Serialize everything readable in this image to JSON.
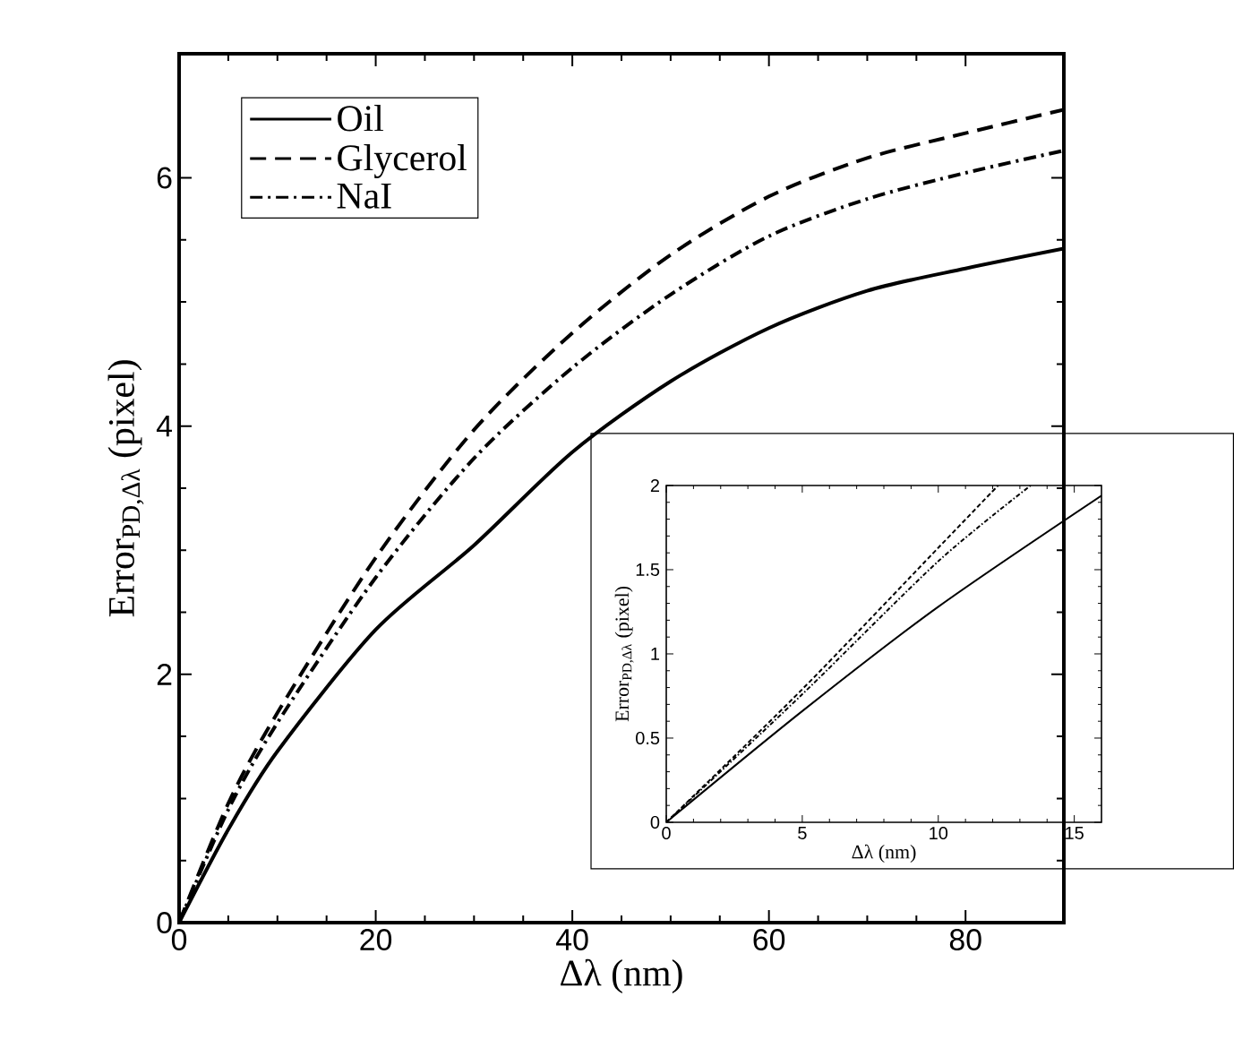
{
  "chart_data": [
    {
      "type": "line",
      "xlabel": "Δλ (nm)",
      "ylabel": "Error$_{PD,Δλ}$ (pixel)",
      "xlim": [
        0,
        90
      ],
      "ylim": [
        0,
        7
      ],
      "xticks": [
        0,
        20,
        40,
        60,
        80
      ],
      "yticks": [
        0,
        2,
        4,
        6
      ],
      "legend": "top left",
      "grid": false,
      "series": [
        {
          "name": "Oil",
          "color": "#000000",
          "line_style": "solid",
          "x": [
            0,
            5,
            10,
            20,
            30,
            40,
            50,
            60,
            70,
            80,
            90
          ],
          "values": [
            0,
            0.75,
            1.38,
            2.36,
            3.04,
            3.79,
            4.36,
            4.79,
            5.09,
            5.27,
            5.43
          ]
        },
        {
          "name": "Glycerol",
          "color": "#000000",
          "line_style": "dashed",
          "x": [
            0,
            5,
            10,
            20,
            30,
            40,
            50,
            60,
            70,
            80,
            90
          ],
          "values": [
            0,
            0.96,
            1.69,
            2.94,
            3.97,
            4.75,
            5.38,
            5.85,
            6.16,
            6.36,
            6.55
          ]
        },
        {
          "name": "NaI",
          "color": "#000000",
          "line_style": "dashdot",
          "x": [
            0,
            5,
            10,
            20,
            30,
            40,
            50,
            60,
            70,
            80,
            90
          ],
          "values": [
            0,
            0.91,
            1.61,
            2.78,
            3.74,
            4.47,
            5.06,
            5.53,
            5.83,
            6.04,
            6.22
          ]
        }
      ]
    },
    {
      "type": "line",
      "xlabel": "Δλ (nm)",
      "ylabel": "Error$_{PD,Δλ}$ (pixel)",
      "xlim": [
        0,
        16
      ],
      "ylim": [
        0,
        2
      ],
      "xticks": [
        0,
        5,
        10,
        15
      ],
      "yticks": [
        0,
        0.5,
        1,
        1.5,
        2
      ],
      "legend": false,
      "grid": false,
      "series": [
        {
          "color": "#000000",
          "line_style": "solid",
          "x": [
            0,
            5,
            10,
            16
          ],
          "values": [
            0,
            0.66,
            1.28,
            1.94
          ]
        },
        {
          "color": "#000000",
          "line_style": "dashed",
          "x": [
            0,
            5,
            10,
            12.2
          ],
          "values": [
            0,
            0.79,
            1.63,
            2
          ]
        },
        {
          "color": "#000000",
          "line_style": "dashdot",
          "x": [
            0,
            5,
            10,
            13.4
          ],
          "values": [
            0,
            0.76,
            1.55,
            2
          ]
        }
      ]
    }
  ]
}
